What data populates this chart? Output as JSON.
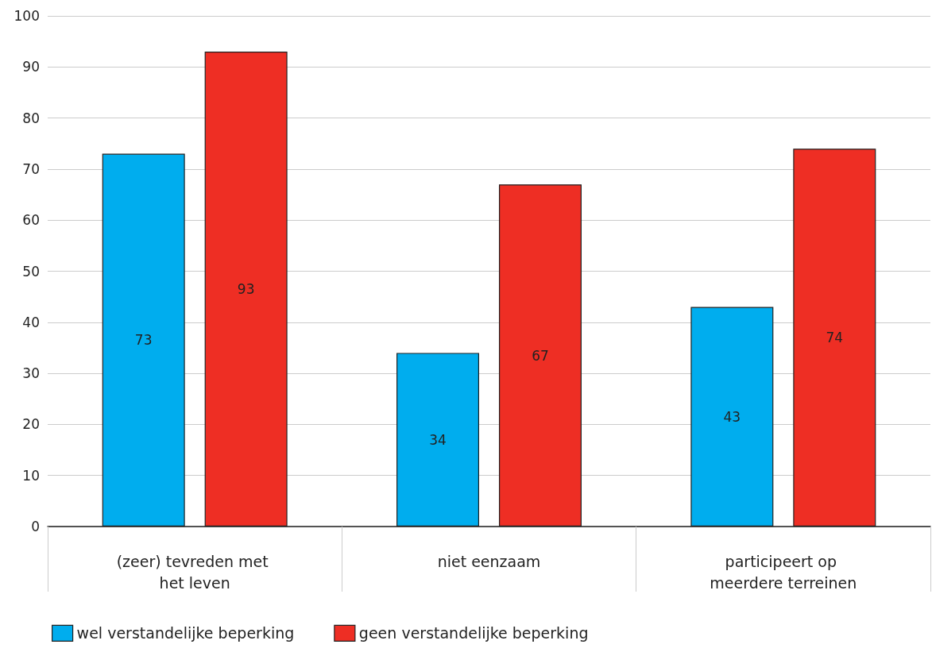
{
  "chart_data": {
    "type": "bar",
    "categories": [
      "(zeer) tevreden met het leven",
      "niet eenzaam",
      "participeert op meerdere terreinen"
    ],
    "series": [
      {
        "name": "wel verstandelijke beperking",
        "color": "#00adee",
        "values": [
          73,
          34,
          43
        ]
      },
      {
        "name": "geen verstandelijke beperking",
        "color": "#ee2e24",
        "values": [
          93,
          67,
          74
        ]
      }
    ],
    "ylim": [
      0,
      100
    ],
    "yticks": [
      0,
      10,
      20,
      30,
      40,
      50,
      60,
      70,
      80,
      90,
      100
    ],
    "grid": "y",
    "legend": "bottom",
    "data_labels": true
  }
}
